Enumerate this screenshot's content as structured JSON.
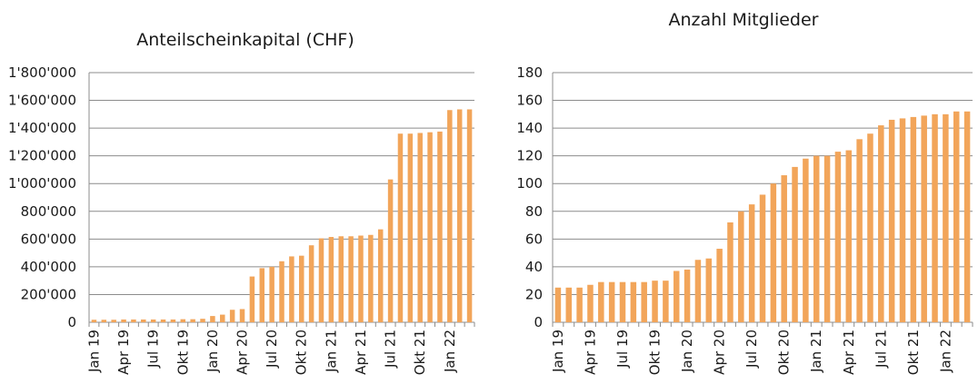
{
  "chart_data": [
    {
      "type": "bar",
      "title": "Anteilscheinkapital (CHF)",
      "xlabel": "",
      "ylabel": "",
      "ylim": [
        0,
        1800000
      ],
      "yticks": [
        0,
        200000,
        400000,
        600000,
        800000,
        1000000,
        1200000,
        1400000,
        1600000,
        1800000
      ],
      "ytick_labels": [
        "0",
        "200'000",
        "400'000",
        "600'000",
        "800'000",
        "1'000'000",
        "1'200'000",
        "1'400'000",
        "1'600'000",
        "1'800'000"
      ],
      "grid": "horizontal",
      "bar_color": "#F2A55A",
      "categories": [
        "Jan 19",
        "Feb 19",
        "Mar 19",
        "Apr 19",
        "Mai 19",
        "Jun 19",
        "Jul 19",
        "Aug 19",
        "Sep 19",
        "Okt 19",
        "Nov 19",
        "Dez 19",
        "Jan 20",
        "Feb 20",
        "Mar 20",
        "Apr 20",
        "Mai 20",
        "Jun 20",
        "Jul 20",
        "Aug 20",
        "Sep 20",
        "Okt 20",
        "Nov 20",
        "Dez 20",
        "Jan 21",
        "Feb 21",
        "Mar 21",
        "Apr 21",
        "Mai 21",
        "Jun 21",
        "Jul 21",
        "Aug 21",
        "Sep 21",
        "Okt 21",
        "Nov 21",
        "Dez 21",
        "Jan 22",
        "Feb 22",
        "Mar 22"
      ],
      "tick_labels": [
        "Jan 19",
        "Apr 19",
        "Jul 19",
        "Okt 19",
        "Jan 20",
        "Apr 20",
        "Jul 20",
        "Okt 20",
        "Jan 21",
        "Apr 21",
        "Jul 21",
        "Okt 21",
        "Jan 22"
      ],
      "values": [
        18000,
        18000,
        18000,
        20000,
        20000,
        20000,
        20000,
        20000,
        20000,
        22000,
        22000,
        25000,
        45000,
        55000,
        90000,
        95000,
        330000,
        390000,
        400000,
        440000,
        475000,
        480000,
        555000,
        605000,
        615000,
        620000,
        620000,
        625000,
        630000,
        670000,
        1030000,
        1360000,
        1360000,
        1365000,
        1370000,
        1375000,
        1530000,
        1535000,
        1535000
      ]
    },
    {
      "type": "bar",
      "title": "Anzahl Mitglieder",
      "xlabel": "",
      "ylabel": "",
      "ylim": [
        0,
        180
      ],
      "yticks": [
        0,
        20,
        40,
        60,
        80,
        100,
        120,
        140,
        160,
        180
      ],
      "ytick_labels": [
        "0",
        "20",
        "40",
        "60",
        "80",
        "100",
        "120",
        "140",
        "160",
        "180"
      ],
      "grid": "horizontal",
      "bar_color": "#F2A55A",
      "categories": [
        "Jan 19",
        "Feb 19",
        "Mar 19",
        "Apr 19",
        "Mai 19",
        "Jun 19",
        "Jul 19",
        "Aug 19",
        "Sep 19",
        "Okt 19",
        "Nov 19",
        "Dez 19",
        "Jan 20",
        "Feb 20",
        "Mar 20",
        "Apr 20",
        "Mai 20",
        "Jun 20",
        "Jul 20",
        "Aug 20",
        "Sep 20",
        "Okt 20",
        "Nov 20",
        "Dez 20",
        "Jan 21",
        "Feb 21",
        "Mar 21",
        "Apr 21",
        "Mai 21",
        "Jun 21",
        "Jul 21",
        "Aug 21",
        "Sep 21",
        "Okt 21",
        "Nov 21",
        "Dez 21",
        "Jan 22",
        "Feb 22",
        "Mar 22"
      ],
      "tick_labels": [
        "Jan 19",
        "Apr 19",
        "Jul 19",
        "Okt 19",
        "Jan 20",
        "Apr 20",
        "Jul 20",
        "Okt 20",
        "Jan 21",
        "Apr 21",
        "Jul 21",
        "Okt 21",
        "Jan 22"
      ],
      "values": [
        25,
        25,
        25,
        27,
        29,
        29,
        29,
        29,
        29,
        30,
        30,
        37,
        38,
        45,
        46,
        53,
        72,
        80,
        85,
        92,
        100,
        106,
        112,
        118,
        120,
        120,
        123,
        124,
        132,
        136,
        142,
        146,
        147,
        148,
        149,
        150,
        150,
        152,
        152
      ]
    }
  ]
}
